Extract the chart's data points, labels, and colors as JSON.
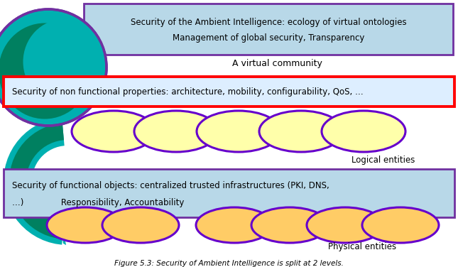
{
  "title": "Figure 5.3: Security of Ambient Intelligence is split at 2 levels.",
  "top_box_text1": "Security of the Ambient Intelligence: ecology of virtual ontologies",
  "top_box_text2": "Management of global security, Transparency",
  "top_box_bg": "#b8d8e8",
  "top_box_border_color": "#7030a0",
  "virtual_community_text": "A virtual community",
  "mid_box_text": "Security of non functional properties: architecture, mobility, configurability, QoS, …",
  "mid_box_bg": "#ddeeff",
  "mid_box_border": "#ff0000",
  "logical_entities_text": "Logical entities",
  "bottom_box_text1": "Security of functional objects: centralized trusted infrastructures (PKI, DNS,",
  "bottom_box_text2": "…)              Responsibility, Accountability",
  "bottom_box_bg": "#b8d8e8",
  "bottom_box_border_color": "#7030a0",
  "physical_entities_text": "Physical entities",
  "ellipse_logical_color": "#ffffaa",
  "ellipse_logical_border": "#6600cc",
  "ellipse_physical_color": "#ffcc66",
  "ellipse_physical_border": "#6600cc",
  "teal_color": "#00b0b0",
  "green_dark": "#008060",
  "bg_color": "#ffffff"
}
